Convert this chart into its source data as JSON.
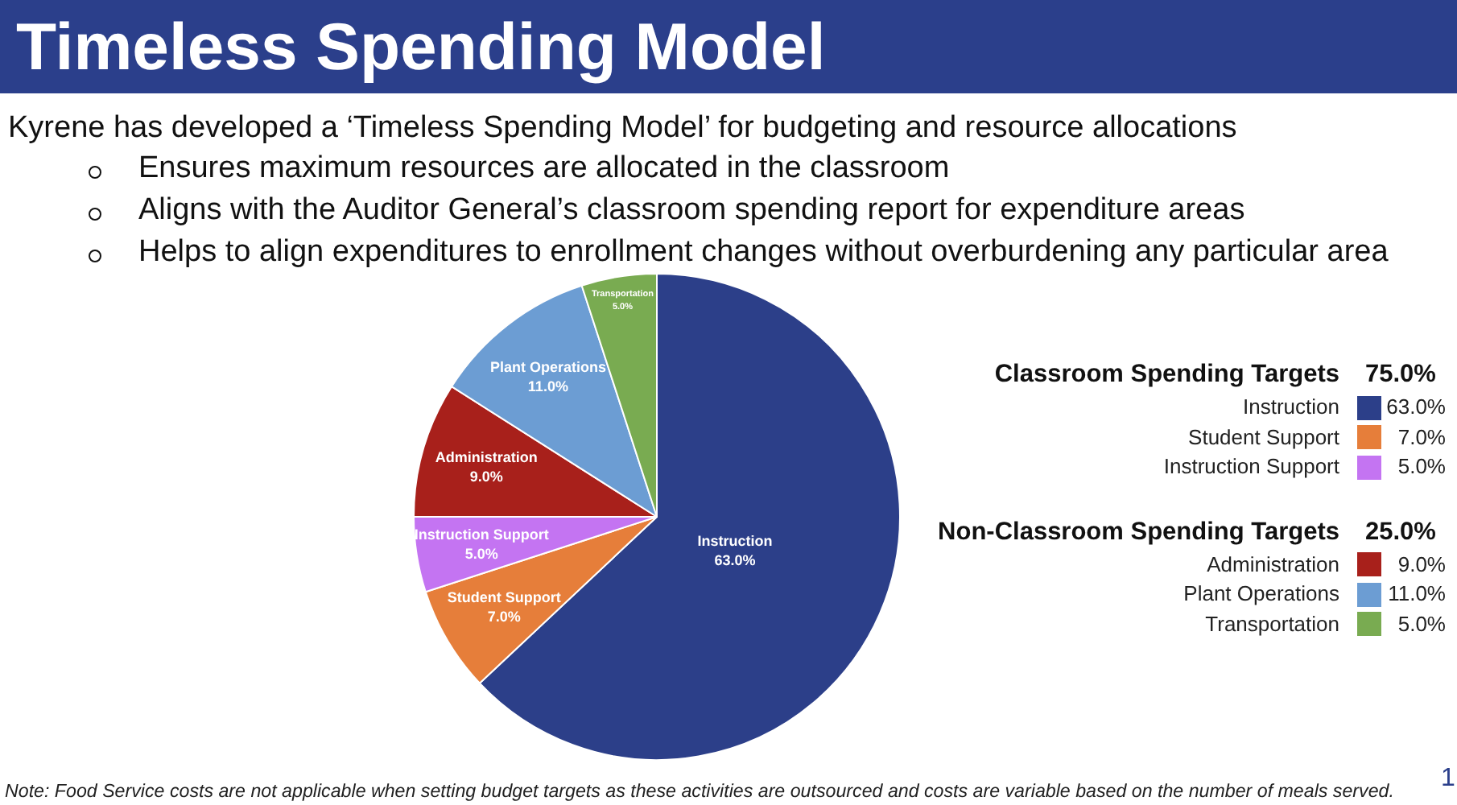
{
  "chart_data": {
    "type": "pie",
    "title": "Timeless Spending Model",
    "subtitle": "Kyrene has developed a ‘Timeless Spending Model’ for budgeting and resource allocations",
    "categories": [
      "Instruction",
      "Student Support",
      "Instruction Support",
      "Administration",
      "Plant Operations",
      "Transportation"
    ],
    "values": [
      63,
      7,
      5,
      9,
      11,
      5
    ],
    "colors": [
      "#2c3f89",
      "#e67e3a",
      "#c474f2",
      "#a8201b",
      "#6c9dd3",
      "#79ab51"
    ],
    "value_labels": [
      "63.0%",
      "7.0%",
      "5.0%",
      "9.0%",
      "11.0%",
      "5.0%"
    ],
    "legend": "right",
    "annotations": [
      "Ensures maximum resources are allocated in the classroom",
      "Aligns with the Auditor General’s classroom spending report for expenditure areas",
      "Helps to align expenditures to enrollment changes without overburdening any particular area",
      "Classroom Spending Targets",
      "75.0%",
      "Non-Classroom Spending Targets",
      "25.0%",
      "Note: Food Service costs are not applicable when setting budget targets as these activities are outsourced and costs are variable based on the number of meals served.",
      "1"
    ]
  }
}
